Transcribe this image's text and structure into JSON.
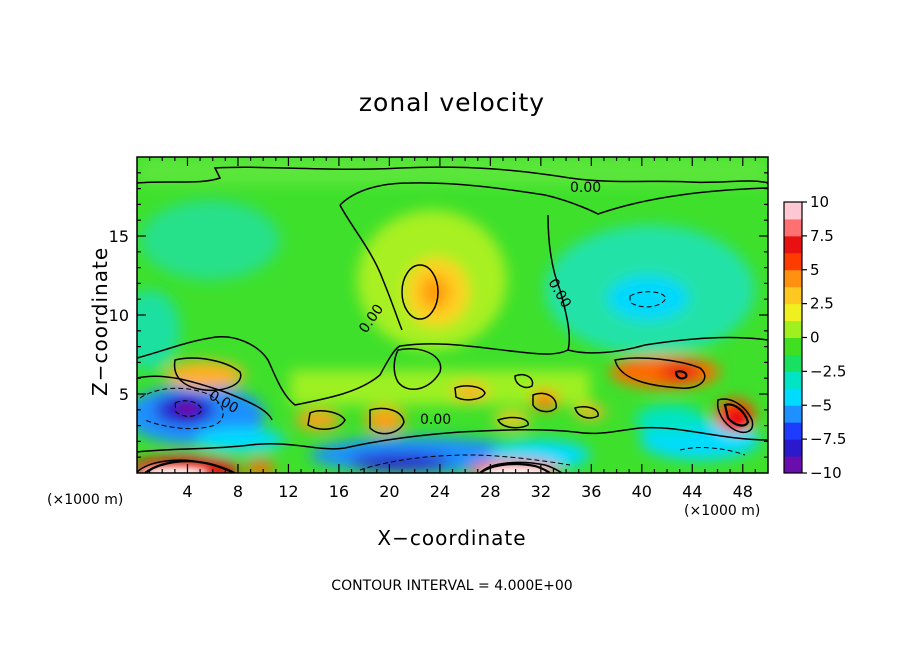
{
  "chart_data": {
    "type": "heatmap",
    "title": "zonal velocity",
    "xlabel": "X−coordinate",
    "ylabel": "Z−coordinate",
    "x_unit": "(×1000 m)",
    "y_unit": "(×1000 m)",
    "footnote": "CONTOUR INTERVAL = 4.000E+00",
    "xlim": [
      0,
      50
    ],
    "ylim": [
      0,
      20
    ],
    "x_ticks": [
      4,
      8,
      12,
      16,
      20,
      24,
      28,
      32,
      36,
      40,
      44,
      48
    ],
    "y_ticks": [
      5,
      10,
      15
    ],
    "colorbar": {
      "range": [
        -10,
        10
      ],
      "ticks": [
        10,
        7.5,
        5,
        2.5,
        0,
        -2.5,
        -5,
        -7.5,
        -10
      ],
      "tick_labels": [
        "10",
        "7.5",
        "5",
        "2.5",
        "0",
        "−2.5",
        "−5",
        "−7.5",
        "−10"
      ],
      "colors": [
        "#6a0dad",
        "#2a1acc",
        "#1e3cff",
        "#1e90ff",
        "#00dcff",
        "#00e4c4",
        "#18e060",
        "#40e020",
        "#a0f020",
        "#f0f020",
        "#ffc820",
        "#ff9010",
        "#ff3c00",
        "#e81010",
        "#ff7070",
        "#ffc8d2"
      ]
    },
    "contour_labels": [
      "0.00",
      "0.00",
      "0.00",
      "0.00",
      "0.00"
    ],
    "features": [
      {
        "x": 24,
        "z": 11,
        "value": 4
      },
      {
        "x": 42,
        "z": 11,
        "value": -3
      },
      {
        "x": 4.5,
        "z": 4,
        "value": -9
      },
      {
        "x": 47.5,
        "z": 3.5,
        "value": 7
      },
      {
        "x": 42.5,
        "z": 6.5,
        "value": 6
      },
      {
        "x": 4.5,
        "z": 0.4,
        "value": 11
      },
      {
        "x": 29,
        "z": 0.4,
        "value": 11
      },
      {
        "x": 21,
        "z": 1.2,
        "value": -6
      },
      {
        "x": 18.5,
        "z": 3,
        "value": 4
      },
      {
        "x": 32.5,
        "z": 4.5,
        "value": 5
      }
    ]
  }
}
